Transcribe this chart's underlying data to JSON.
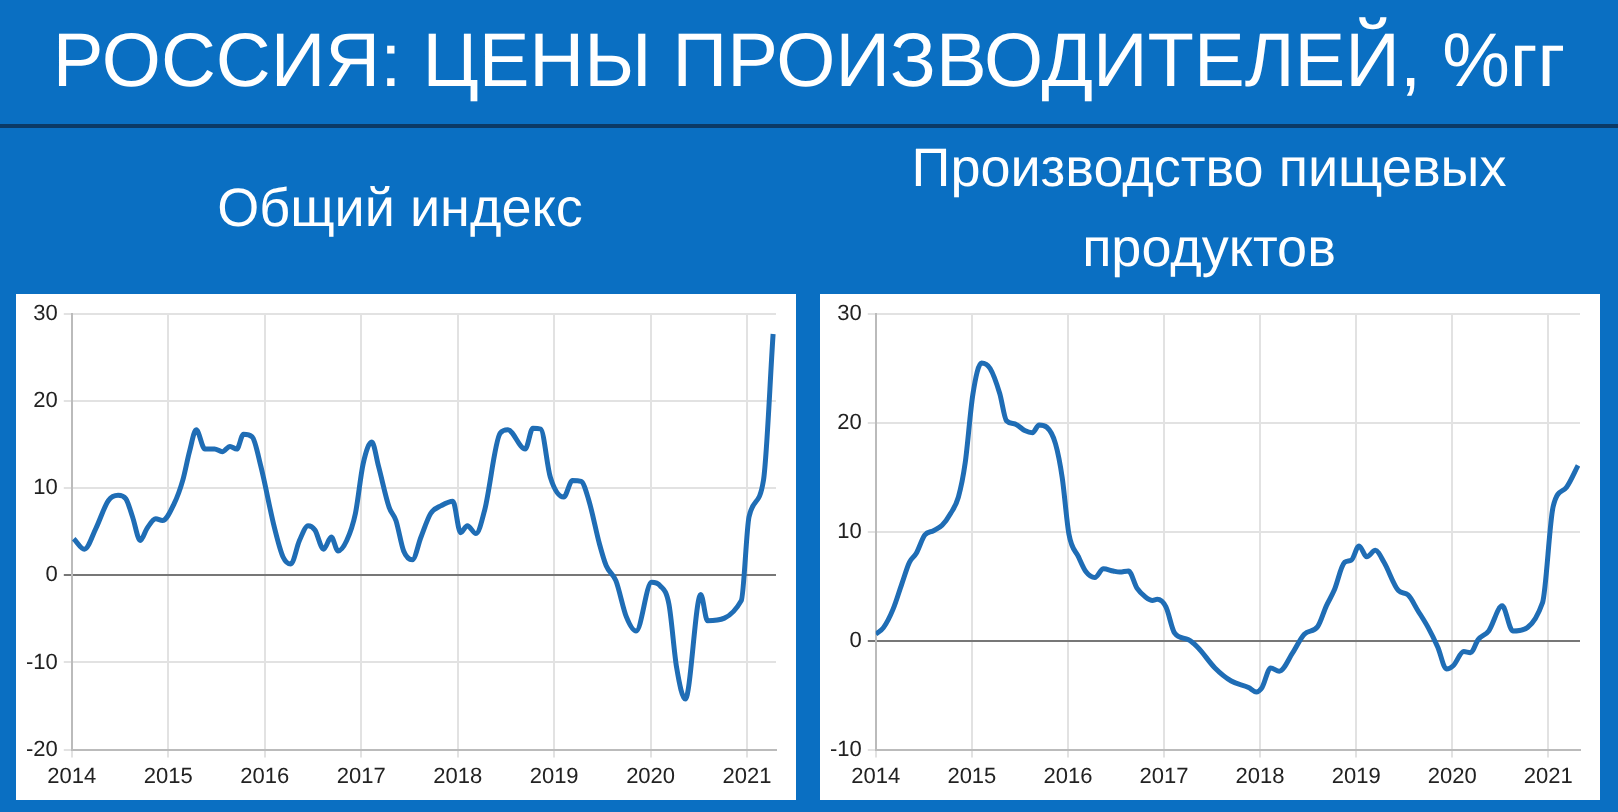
{
  "chart_data": [
    {
      "type": "line",
      "title": "РОССИЯ: ЦЕНЫ ПРОИЗВОДИТЕЛЕЙ, %гг",
      "subtitle": "Общий индекс",
      "xlim": [
        2014,
        2021.3
      ],
      "xticks": [
        2014,
        2015,
        2016,
        2017,
        2018,
        2019,
        2020,
        2021
      ],
      "ylim": [
        -20,
        30
      ],
      "yticks": [
        -20,
        -10,
        0,
        10,
        20,
        30
      ],
      "grid": true,
      "legend": false,
      "marker": "none",
      "line_style": "solid",
      "series": [
        {
          "color": "#1f6db5",
          "x": [
            2014.02,
            2014.13,
            2014.25,
            2014.38,
            2014.48,
            2014.56,
            2014.63,
            2014.71,
            2014.78,
            2014.87,
            2014.94,
            2015.06,
            2015.15,
            2015.22,
            2015.29,
            2015.38,
            2015.48,
            2015.56,
            2015.64,
            2015.71,
            2015.78,
            2015.87,
            2015.96,
            2016.1,
            2016.19,
            2016.27,
            2016.36,
            2016.45,
            2016.52,
            2016.61,
            2016.69,
            2016.76,
            2016.85,
            2016.94,
            2017.02,
            2017.11,
            2017.18,
            2017.29,
            2017.36,
            2017.44,
            2017.53,
            2017.62,
            2017.72,
            2017.83,
            2017.95,
            2018.03,
            2018.1,
            2018.19,
            2018.28,
            2018.44,
            2018.52,
            2018.7,
            2018.78,
            2018.86,
            2018.96,
            2019.1,
            2019.19,
            2019.28,
            2019.36,
            2019.47,
            2019.54,
            2019.64,
            2019.75,
            2019.85,
            2020.01,
            2020.1,
            2020.19,
            2020.27,
            2020.36,
            2020.52,
            2020.59,
            2020.94,
            2021.02,
            2021.17,
            2021.27
          ],
          "values": [
            4.2,
            3.0,
            5.4,
            8.6,
            9.2,
            8.8,
            6.7,
            4.0,
            5.4,
            6.5,
            6.3,
            8.2,
            10.9,
            14.2,
            16.7,
            14.5,
            14.5,
            14.2,
            14.8,
            14.5,
            16.2,
            15.9,
            12.5,
            5.5,
            2.1,
            1.3,
            4.0,
            5.7,
            5.2,
            3.0,
            4.4,
            2.8,
            4.0,
            7.1,
            12.8,
            15.3,
            12.5,
            7.8,
            6.3,
            2.8,
            1.8,
            4.4,
            7.1,
            8.0,
            8.5,
            4.9,
            5.7,
            4.8,
            7.5,
            16.3,
            16.7,
            14.5,
            16.9,
            16.8,
            11.3,
            9.0,
            10.9,
            10.8,
            8.6,
            3.6,
            1.1,
            -0.6,
            -4.8,
            -6.4,
            -0.8,
            -1.2,
            -3.3,
            -10.6,
            -14.2,
            -2.2,
            -5.2,
            -2.9,
            6.7,
            10.9,
            27.7
          ]
        }
      ]
    },
    {
      "type": "line",
      "subtitle": "Производство пищевых продуктов",
      "xlim": [
        2014,
        2021.33
      ],
      "xticks": [
        2014,
        2015,
        2016,
        2017,
        2018,
        2019,
        2020,
        2021
      ],
      "ylim": [
        -10,
        30
      ],
      "yticks": [
        -10,
        0,
        10,
        20,
        30
      ],
      "grid": true,
      "legend": false,
      "marker": "none",
      "line_style": "solid",
      "series": [
        {
          "color": "#1f6db5",
          "x": [
            2014.0,
            2014.08,
            2014.18,
            2014.27,
            2014.35,
            2014.42,
            2014.51,
            2014.6,
            2014.69,
            2014.78,
            2014.86,
            2014.93,
            2015.01,
            2015.1,
            2015.19,
            2015.29,
            2015.36,
            2015.45,
            2015.55,
            2015.63,
            2015.7,
            2015.78,
            2015.87,
            2015.94,
            2016.01,
            2016.11,
            2016.19,
            2016.28,
            2016.37,
            2016.47,
            2016.54,
            2016.63,
            2016.72,
            2016.81,
            2016.88,
            2016.93,
            2017.02,
            2017.11,
            2017.25,
            2017.35,
            2017.53,
            2017.7,
            2017.88,
            2017.96,
            2018.02,
            2018.11,
            2018.2,
            2018.34,
            2018.46,
            2018.6,
            2018.69,
            2018.77,
            2018.88,
            2018.95,
            2019.03,
            2019.11,
            2019.2,
            2019.29,
            2019.44,
            2019.54,
            2019.64,
            2019.75,
            2019.85,
            2019.94,
            2020.01,
            2020.12,
            2020.19,
            2020.27,
            2020.38,
            2020.52,
            2020.63,
            2020.94,
            2021.05,
            2021.19,
            2021.31
          ],
          "values": [
            0.6,
            1.2,
            2.9,
            5.2,
            7.2,
            8.0,
            9.7,
            10.1,
            10.6,
            11.7,
            13.2,
            16.3,
            22.6,
            25.5,
            25.0,
            22.7,
            20.2,
            19.9,
            19.3,
            19.1,
            19.8,
            19.6,
            18.1,
            15.0,
            9.8,
            7.7,
            6.3,
            5.8,
            6.6,
            6.4,
            6.3,
            6.4,
            4.8,
            4.0,
            3.7,
            3.8,
            3.1,
            0.7,
            0.1,
            -0.6,
            -2.5,
            -3.7,
            -4.3,
            -4.7,
            -4.3,
            -2.5,
            -2.8,
            -1.1,
            0.6,
            1.3,
            3.2,
            4.6,
            7.2,
            7.4,
            8.7,
            7.7,
            8.3,
            7.2,
            4.6,
            4.2,
            2.8,
            1.2,
            -0.6,
            -2.6,
            -2.3,
            -1.0,
            -1.1,
            0.1,
            0.9,
            3.2,
            0.9,
            3.5,
            12.3,
            14.1,
            16.1
          ]
        }
      ]
    }
  ]
}
